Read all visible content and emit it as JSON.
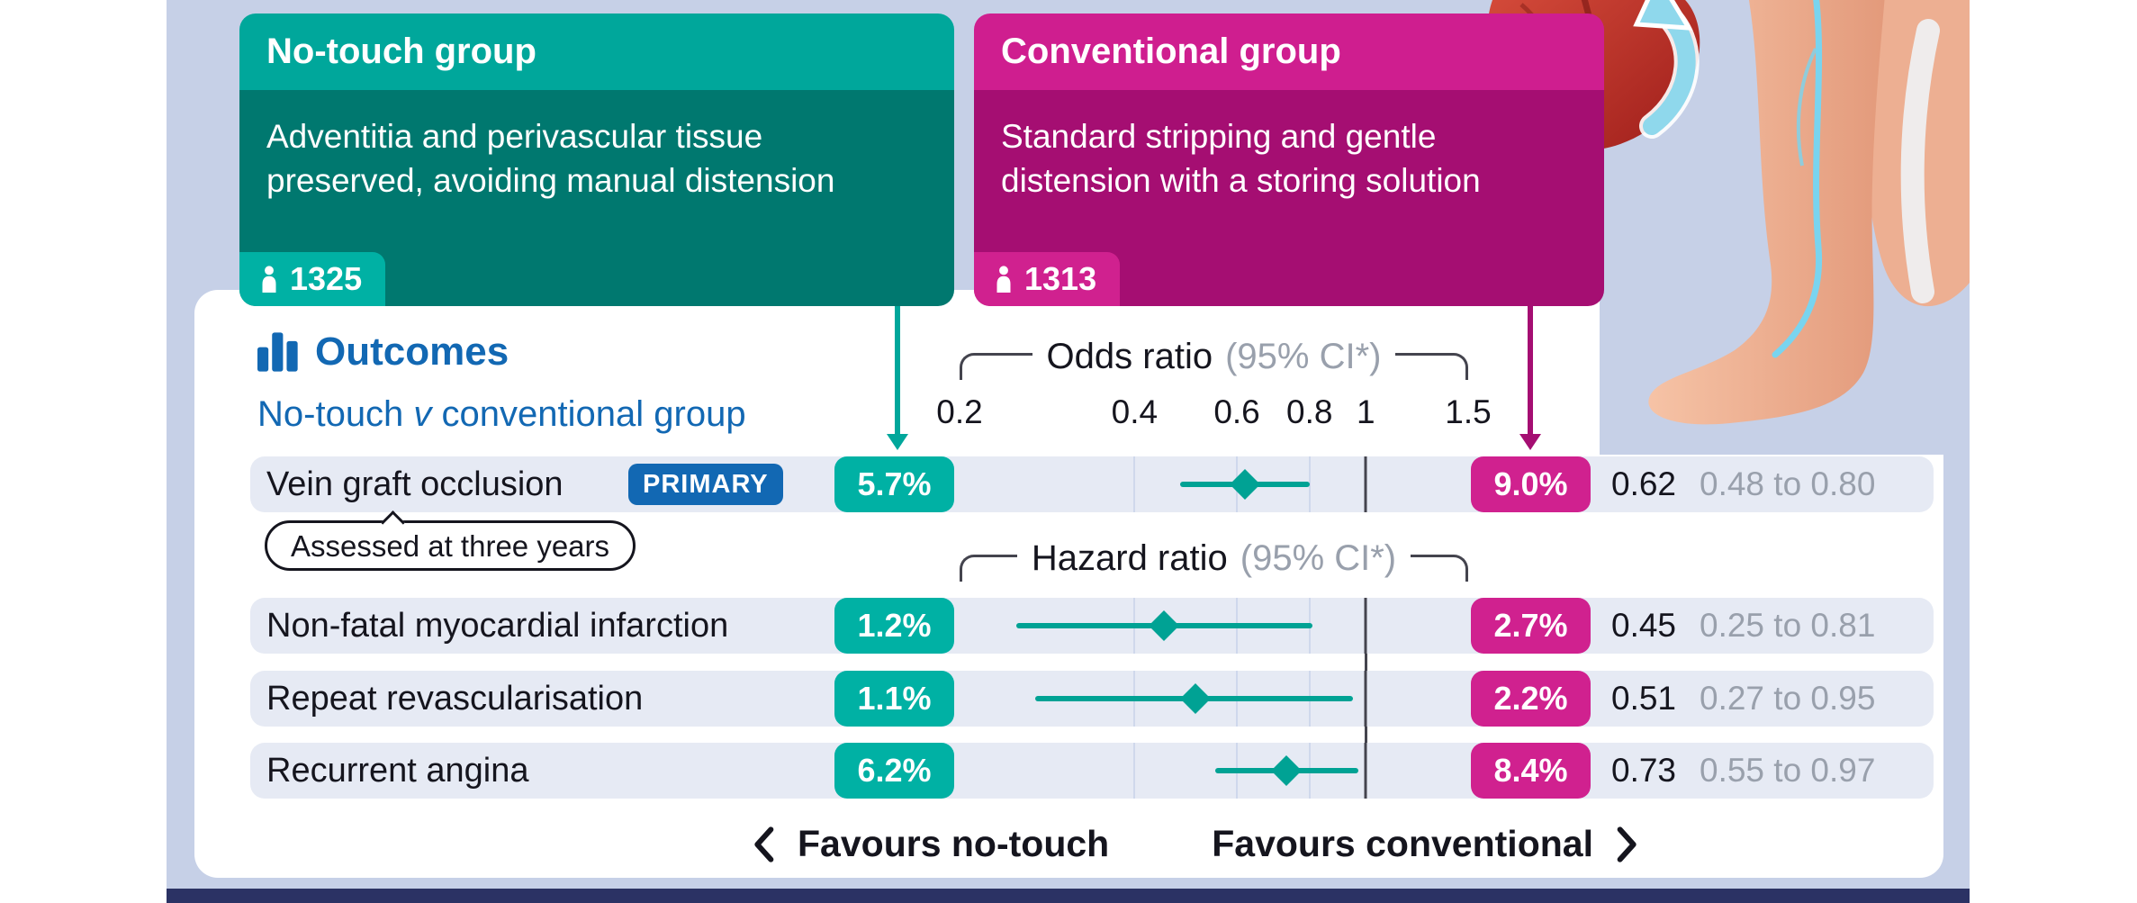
{
  "palette": {
    "page_bg": "#c6d0e7",
    "navy": "#2b3264",
    "teal_header": "#00a79b",
    "teal_body": "#00786f",
    "teal_accent": "#00b1a4",
    "plot_teal": "#00a294",
    "magenta_header": "#cf1e8f",
    "magenta_body": "#a50e72",
    "magenta_accent": "#d0218f",
    "blue": "#1268b3",
    "row_bg": "#e6eaf4",
    "grid": "#cfd8ec",
    "ref_line": "#44444e",
    "bracket": "#44444e",
    "ink": "#15151e",
    "gray": "#99a0ac"
  },
  "icons": {
    "outcomes": "bar-chart-icon",
    "participants": "person-icon",
    "favours_left": "chevron-left-icon",
    "favours_right": "chevron-right-icon"
  },
  "groups": [
    {
      "title": "No-touch group",
      "description": "Adventitia and perivascular tissue preserved, avoiding manual distension",
      "participants": "1325"
    },
    {
      "title": "Conventional group",
      "description": "Standard stripping and gentle distension with a storing solution",
      "participants": "1313"
    }
  ],
  "outcomes_header": {
    "title": "Outcomes",
    "comparison": {
      "prefix": "No-touch ",
      "versus": "v",
      "suffix": " conventional group"
    }
  },
  "chart_data": {
    "type": "forest",
    "scale": "log",
    "axis": {
      "min": 0.2,
      "max": 1.5,
      "ticks": [
        0.2,
        0.4,
        0.6,
        0.8,
        1,
        1.5
      ],
      "gridlines": [
        0.4,
        0.6,
        0.8
      ],
      "reference": 1
    },
    "sections": [
      {
        "measure": "Odds ratio",
        "ci_label": "(95% CI*)",
        "applies_to_rows": [
          0
        ]
      },
      {
        "measure": "Hazard ratio",
        "ci_label": "(95% CI*)",
        "applies_to_rows": [
          1,
          2,
          3
        ]
      }
    ],
    "rows": [
      {
        "label": "Vein graft occlusion",
        "badge": "PRIMARY",
        "note": "Assessed at three years",
        "no_touch_value": "5.7%",
        "conventional_value": "9.0%",
        "estimate": 0.62,
        "ci_low": 0.48,
        "ci_high": 0.8,
        "estimate_label": "0.62",
        "ci_text": "0.48 to 0.80"
      },
      {
        "label": "Non-fatal myocardial infarction",
        "no_touch_value": "1.2%",
        "conventional_value": "2.7%",
        "estimate": 0.45,
        "ci_low": 0.25,
        "ci_high": 0.81,
        "estimate_label": "0.45",
        "ci_text": "0.25 to 0.81"
      },
      {
        "label": "Repeat revascularisation",
        "no_touch_value": "1.1%",
        "conventional_value": "2.2%",
        "estimate": 0.51,
        "ci_low": 0.27,
        "ci_high": 0.95,
        "estimate_label": "0.51",
        "ci_text": "0.27 to 0.95"
      },
      {
        "label": "Recurrent angina",
        "no_touch_value": "6.2%",
        "conventional_value": "8.4%",
        "estimate": 0.73,
        "ci_low": 0.55,
        "ci_high": 0.97,
        "estimate_label": "0.73",
        "ci_text": "0.55 to 0.97"
      }
    ],
    "footer": {
      "favours_left": "Favours no-touch",
      "favours_right": "Favours conventional"
    }
  }
}
